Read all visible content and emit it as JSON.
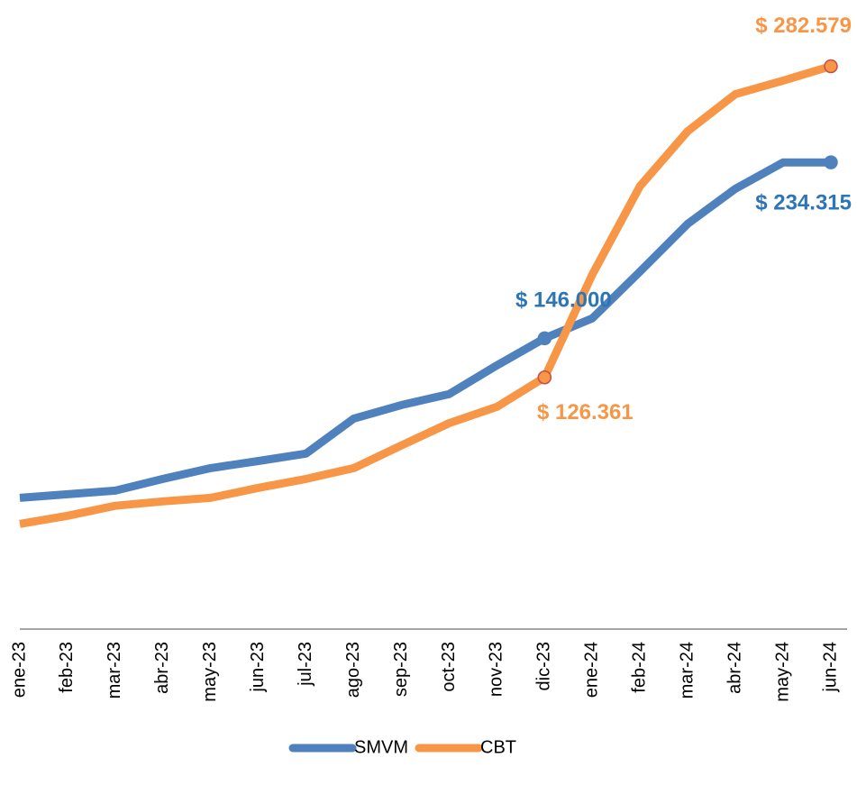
{
  "chart_data": {
    "type": "line",
    "categories": [
      "ene-23",
      "feb-23",
      "mar-23",
      "abr-23",
      "may-23",
      "jun-23",
      "jul-23",
      "ago-23",
      "sep-23",
      "oct-23",
      "nov-23",
      "dic-23",
      "ene-24",
      "feb-24",
      "mar-24",
      "abr-24",
      "may-24",
      "jun-24"
    ],
    "series": [
      {
        "name": "SMVM",
        "color": "#4F81BD",
        "label_color": "#2E75B6",
        "values": [
          65900,
          67700,
          69500,
          75400,
          80800,
          84400,
          88100,
          105700,
          112500,
          118000,
          132400,
          146000,
          156000,
          179500,
          203500,
          221100,
          234315,
          234315
        ],
        "value_labels": [
          null,
          null,
          null,
          null,
          null,
          null,
          null,
          null,
          null,
          null,
          null,
          "$ 146.000",
          null,
          null,
          null,
          null,
          null,
          "$ 234.315"
        ]
      },
      {
        "name": "CBT",
        "color": "#F79646",
        "label_color": "#F79646",
        "values": [
          52800,
          56900,
          61900,
          64100,
          65900,
          70900,
          75400,
          80800,
          92200,
          103400,
          111600,
          126361,
          178000,
          222400,
          250000,
          268600,
          275400,
          282579
        ],
        "value_labels": [
          null,
          null,
          null,
          null,
          null,
          null,
          null,
          null,
          null,
          null,
          null,
          "$ 126.361",
          null,
          null,
          null,
          null,
          null,
          "$ 282.579"
        ]
      }
    ],
    "ylim": [
      0,
      300000
    ],
    "grid": false,
    "legend": "bottom"
  }
}
